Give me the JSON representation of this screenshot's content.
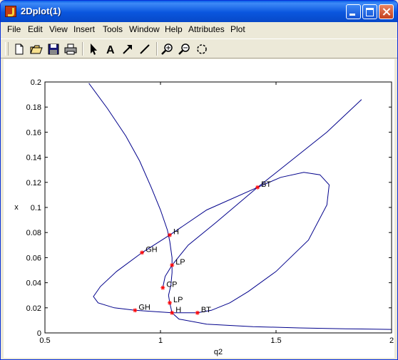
{
  "window": {
    "title": "2Dplot(1)"
  },
  "menu": [
    "File",
    "Edit",
    "View",
    "Insert",
    "Tools",
    "Window",
    "Help",
    "Attributes",
    "Plot"
  ],
  "toolbar": {
    "tools": [
      {
        "name": "new-figure-icon",
        "interactable": true
      },
      {
        "name": "open-file-icon",
        "interactable": true
      },
      {
        "name": "save-icon",
        "interactable": true
      },
      {
        "name": "print-icon",
        "interactable": true
      },
      {
        "name": "pointer-icon",
        "interactable": true
      },
      {
        "name": "insert-text-icon",
        "interactable": true
      },
      {
        "name": "insert-arrow-icon",
        "interactable": true
      },
      {
        "name": "insert-line-icon",
        "interactable": true
      },
      {
        "name": "zoom-in-icon",
        "interactable": true
      },
      {
        "name": "zoom-out-icon",
        "interactable": true
      },
      {
        "name": "rotate-icon",
        "interactable": true
      }
    ]
  },
  "chart_data": {
    "type": "line",
    "xlabel": "q2",
    "ylabel": "x",
    "xlim": [
      0.5,
      2
    ],
    "ylim": [
      0,
      0.2
    ],
    "xticks": [
      "0.5",
      "1",
      "1.5",
      "2"
    ],
    "yticks": [
      "0",
      "0.02",
      "0.04",
      "0.06",
      "0.08",
      "0.1",
      "0.12",
      "0.14",
      "0.16",
      "0.18",
      "0.2"
    ],
    "line_color": "#00008b",
    "marker_color": "#ff0000",
    "series": [
      {
        "points": [
          [
            0.69,
            0.199
          ],
          [
            0.77,
            0.179
          ],
          [
            0.85,
            0.157
          ],
          [
            0.91,
            0.137
          ],
          [
            0.96,
            0.116
          ],
          [
            1.0,
            0.098
          ],
          [
            1.03,
            0.082
          ],
          [
            1.04,
            0.073
          ],
          [
            1.05,
            0.06
          ],
          [
            1.05,
            0.048
          ],
          [
            1.045,
            0.038
          ],
          [
            1.035,
            0.03
          ],
          [
            1.04,
            0.024
          ],
          [
            1.05,
            0.016
          ],
          [
            1.08,
            0.011
          ],
          [
            1.2,
            0.007
          ],
          [
            1.4,
            0.005
          ],
          [
            1.6,
            0.004
          ],
          [
            1.8,
            0.0033
          ],
          [
            2.0,
            0.0028
          ]
        ]
      },
      {
        "points": [
          [
            1.05,
            0.016
          ],
          [
            0.89,
            0.018
          ],
          [
            0.8,
            0.02
          ],
          [
            0.73,
            0.024
          ],
          [
            0.71,
            0.029
          ],
          [
            0.74,
            0.037
          ],
          [
            0.81,
            0.049
          ],
          [
            0.92,
            0.064
          ],
          [
            1.04,
            0.078
          ],
          [
            1.2,
            0.098
          ],
          [
            1.42,
            0.116
          ],
          [
            1.52,
            0.124
          ],
          [
            1.62,
            0.128
          ],
          [
            1.69,
            0.126
          ],
          [
            1.73,
            0.118
          ],
          [
            1.72,
            0.102
          ],
          [
            1.64,
            0.074
          ],
          [
            1.5,
            0.049
          ],
          [
            1.38,
            0.033
          ],
          [
            1.3,
            0.024
          ],
          [
            1.22,
            0.018
          ],
          [
            1.16,
            0.016
          ],
          [
            1.05,
            0.016
          ]
        ]
      },
      {
        "points": [
          [
            1.01,
            0.036
          ],
          [
            1.02,
            0.045
          ],
          [
            1.05,
            0.054
          ],
          [
            1.12,
            0.07
          ],
          [
            1.24,
            0.088
          ],
          [
            1.42,
            0.116
          ],
          [
            1.57,
            0.138
          ],
          [
            1.72,
            0.16
          ],
          [
            1.87,
            0.186
          ]
        ]
      }
    ],
    "annotations": [
      {
        "label": "BT",
        "x": 1.42,
        "y": 0.116
      },
      {
        "label": "H",
        "x": 1.04,
        "y": 0.078
      },
      {
        "label": "GH",
        "x": 0.92,
        "y": 0.064
      },
      {
        "label": "LP",
        "x": 1.05,
        "y": 0.054
      },
      {
        "label": "CP",
        "x": 1.01,
        "y": 0.036
      },
      {
        "label": "LP",
        "x": 1.04,
        "y": 0.024
      },
      {
        "label": "GH",
        "x": 0.89,
        "y": 0.018
      },
      {
        "label": "H",
        "x": 1.05,
        "y": 0.016
      },
      {
        "label": "BT",
        "x": 1.16,
        "y": 0.016
      }
    ]
  }
}
